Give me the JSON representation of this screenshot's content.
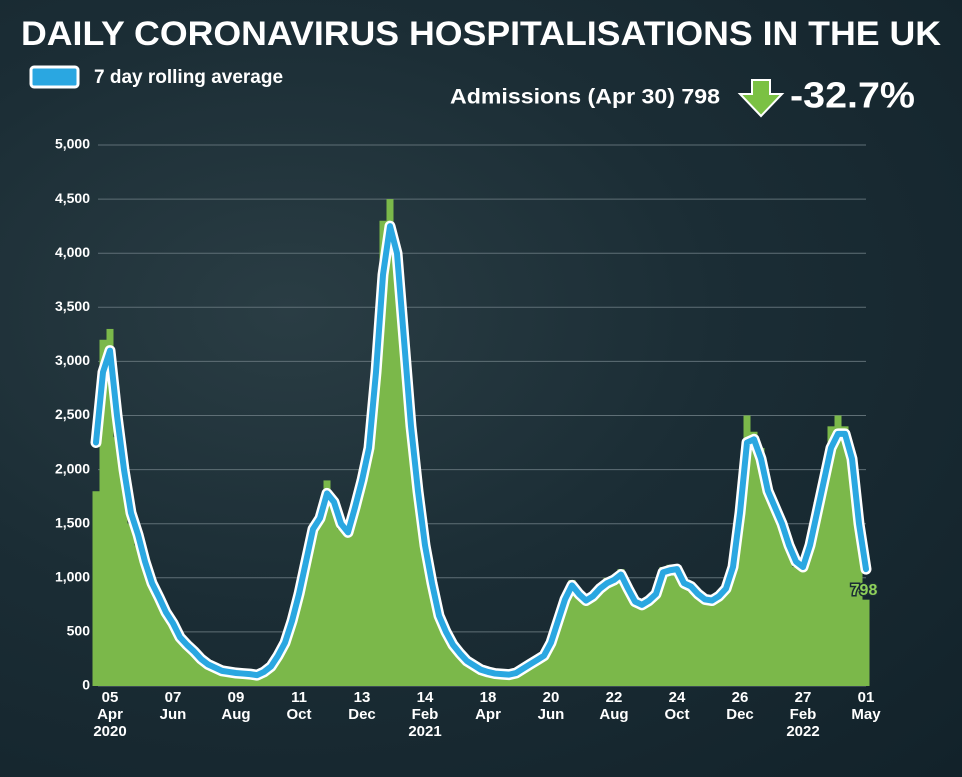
{
  "chart_data": {
    "type": "bar",
    "title": "DAILY CORONAVIRUS HOSPITALISATIONS IN THE UK",
    "annotations": {
      "admissions": "Admissions  (Apr 30) 798",
      "change": "-32.7%"
    },
    "categories": [
      null,
      null,
      "05\nApr\n2020",
      null,
      null,
      null,
      null,
      null,
      null,
      null,
      null,
      "07\nJun",
      null,
      null,
      null,
      null,
      null,
      null,
      null,
      null,
      "09\nAug",
      null,
      null,
      null,
      null,
      null,
      null,
      null,
      null,
      "11\nOct",
      null,
      null,
      null,
      null,
      null,
      null,
      null,
      null,
      "13\nDec",
      null,
      null,
      null,
      null,
      null,
      null,
      null,
      null,
      "14\nFeb\n2021",
      null,
      null,
      null,
      null,
      null,
      null,
      null,
      null,
      "18\nApr",
      null,
      null,
      null,
      null,
      null,
      null,
      null,
      null,
      "20\nJun",
      null,
      null,
      null,
      null,
      null,
      null,
      null,
      null,
      "22\nAug",
      null,
      null,
      null,
      null,
      null,
      null,
      null,
      null,
      "24\nOct",
      null,
      null,
      null,
      null,
      null,
      null,
      null,
      null,
      "26\nDec",
      null,
      null,
      null,
      null,
      null,
      null,
      null,
      null,
      "27\nFeb\n2022",
      null,
      null,
      null,
      null,
      null,
      null,
      null,
      null,
      "01\nMay"
    ],
    "values": [
      1800,
      3200,
      3300,
      2300,
      1900,
      1500,
      1300,
      1100,
      900,
      800,
      650,
      560,
      430,
      370,
      300,
      240,
      190,
      160,
      130,
      120,
      110,
      110,
      100,
      95,
      120,
      170,
      270,
      390,
      620,
      880,
      1200,
      1500,
      1600,
      1900,
      1650,
      1450,
      1380,
      1700,
      2000,
      2300,
      3100,
      4300,
      4500,
      3900,
      3000,
      2300,
      1700,
      1250,
      900,
      620,
      480,
      360,
      280,
      220,
      180,
      140,
      120,
      110,
      100,
      100,
      110,
      150,
      190,
      230,
      270,
      420,
      650,
      850,
      980,
      820,
      770,
      850,
      940,
      1000,
      1020,
      1080,
      870,
      760,
      730,
      780,
      840,
      1100,
      1120,
      1100,
      930,
      900,
      830,
      780,
      770,
      820,
      880,
      1150,
      1700,
      2500,
      2350,
      2200,
      1750,
      1600,
      1450,
      1250,
      1100,
      1080,
      1350,
      1700,
      2000,
      2400,
      2500,
      2400,
      2000,
      1400,
      798
    ],
    "color": "#7bb84a",
    "series": [
      {
        "name": "7 day rolling average",
        "type": "line",
        "color": "#2aa7e1",
        "values": [
          2250,
          2900,
          3100,
          2500,
          2000,
          1600,
          1400,
          1150,
          950,
          820,
          680,
          580,
          450,
          380,
          320,
          250,
          200,
          170,
          140,
          130,
          120,
          115,
          110,
          100,
          130,
          180,
          280,
          400,
          600,
          850,
          1150,
          1450,
          1550,
          1780,
          1700,
          1500,
          1420,
          1650,
          1900,
          2200,
          2900,
          3800,
          4250,
          4000,
          3200,
          2400,
          1800,
          1300,
          950,
          650,
          500,
          380,
          300,
          230,
          190,
          150,
          130,
          115,
          110,
          105,
          120,
          160,
          200,
          240,
          280,
          400,
          600,
          800,
          930,
          850,
          790,
          830,
          900,
          950,
          980,
          1030,
          900,
          780,
          750,
          790,
          850,
          1050,
          1070,
          1080,
          950,
          920,
          850,
          800,
          790,
          830,
          900,
          1100,
          1600,
          2250,
          2280,
          2100,
          1800,
          1650,
          1500,
          1300,
          1150,
          1100,
          1300,
          1600,
          1900,
          2200,
          2330,
          2330,
          2100,
          1500,
          1080
        ]
      }
    ],
    "ylim": [
      0,
      5000
    ],
    "yticks": [
      0,
      500,
      {
        "value": 1000,
        "label": "1,000"
      },
      {
        "value": 1500,
        "label": "1,500"
      },
      {
        "value": 2000,
        "label": "2,000"
      },
      {
        "value": 2500,
        "label": "2,500"
      },
      {
        "value": 3000,
        "label": "3,000"
      },
      {
        "value": 3500,
        "label": "3,500"
      },
      {
        "value": 4000,
        "label": "4,000"
      },
      {
        "value": 4500,
        "label": "4,500"
      },
      {
        "value": 5000,
        "label": "5,000"
      }
    ],
    "grid": true
  }
}
